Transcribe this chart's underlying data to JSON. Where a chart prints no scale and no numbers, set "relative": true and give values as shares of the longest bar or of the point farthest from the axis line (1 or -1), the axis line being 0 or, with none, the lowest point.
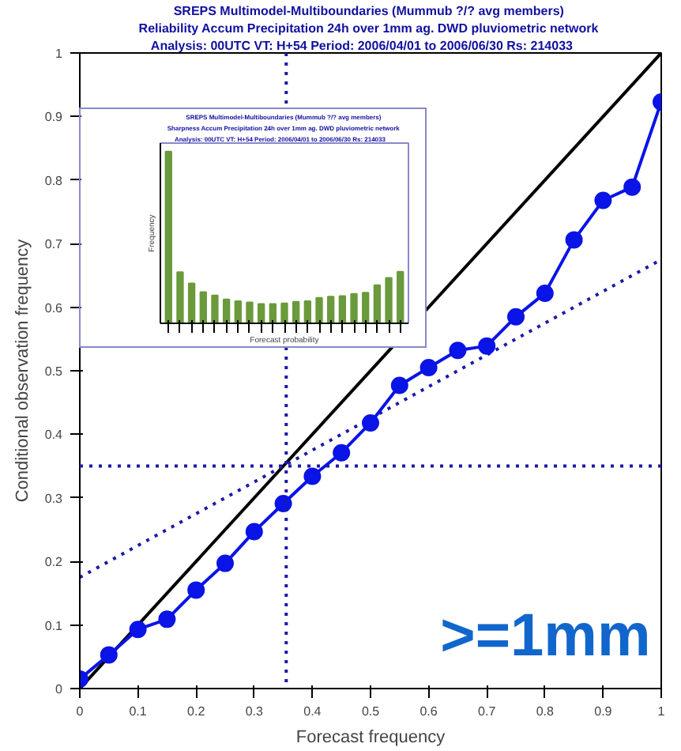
{
  "chart_data": [
    {
      "type": "line",
      "title": "SREPS Multimodel-Multiboundaries  (Mummub ?/? avg members)",
      "subtitle": "Reliability  Accum Precipitation 24h over 1mm ag. DWD pluviometric network",
      "xlabel": "Forecast frequency",
      "ylabel": "Conditional observation frequency",
      "xlim": [
        0,
        1
      ],
      "ylim": [
        0,
        1
      ],
      "xticks": [
        0,
        0.1,
        0.2,
        0.3,
        0.4,
        0.5,
        0.6,
        0.7,
        0.8,
        0.9,
        1
      ],
      "yticks": [
        0,
        0.1,
        0.2,
        0.3,
        0.4,
        0.5,
        0.6,
        0.7,
        0.8,
        0.9,
        1
      ],
      "grid": false,
      "series": [
        {
          "color": "#000000",
          "marker": "none",
          "line_style": "solid",
          "x": [
            0,
            1
          ],
          "values": [
            0,
            1
          ]
        },
        {
          "color": "#1a1aa8",
          "marker": "none",
          "line_style": "dotted",
          "x": [
            0,
            1
          ],
          "values": [
            0.175,
            0.675
          ]
        },
        {
          "color": "#0a14e6",
          "marker": "circle",
          "line_style": "solid",
          "x": [
            0,
            0.05,
            0.1,
            0.15,
            0.2,
            0.25,
            0.3,
            0.35,
            0.4,
            0.45,
            0.5,
            0.55,
            0.6,
            0.65,
            0.7,
            0.75,
            0.8,
            0.85,
            0.9,
            0.95,
            1
          ],
          "values": [
            0.015,
            0.053,
            0.093,
            0.109,
            0.155,
            0.197,
            0.247,
            0.291,
            0.334,
            0.371,
            0.418,
            0.477,
            0.505,
            0.532,
            0.539,
            0.585,
            0.622,
            0.706,
            0.768,
            0.789,
            0.923
          ]
        }
      ],
      "ref_lines": [
        {
          "axis": "x",
          "value": 0.355,
          "color": "#1a1aa8",
          "line_style": "dotted"
        },
        {
          "axis": "y",
          "value": 0.35,
          "color": "#1a1aa8",
          "line_style": "dotted"
        }
      ],
      "annotations": [
        "Analysis: 00UTC  VT: H+54   Period: 2006/04/01 to 2006/06/30   Rs: 214033",
        ">=1mm"
      ]
    },
    {
      "type": "bar",
      "relative": true,
      "title": "SREPS Multimodel-Multiboundaries  (Mummub ?/? avg members)",
      "subtitle": "Sharpness  Accum Precipitation 24h over 1mm ag. DWD pluviometric network",
      "annotations": [
        "Analysis: 00UTC  VT: H+54   Period: 2006/04/01 to 2006/06/30   Rs: 214033"
      ],
      "xlabel": "Forecast probability",
      "ylabel": "Frequency",
      "categories": [
        null,
        null,
        null,
        null,
        null,
        null,
        null,
        null,
        null,
        null,
        null,
        null,
        null,
        null,
        null,
        null,
        null,
        null,
        null,
        null,
        null
      ],
      "color": "#6a9a3c",
      "values": [
        1,
        0.298,
        0.232,
        0.182,
        0.162,
        0.139,
        0.129,
        0.122,
        0.113,
        0.113,
        0.116,
        0.126,
        0.129,
        0.149,
        0.156,
        0.159,
        0.172,
        0.179,
        0.222,
        0.265,
        0.301
      ]
    }
  ]
}
